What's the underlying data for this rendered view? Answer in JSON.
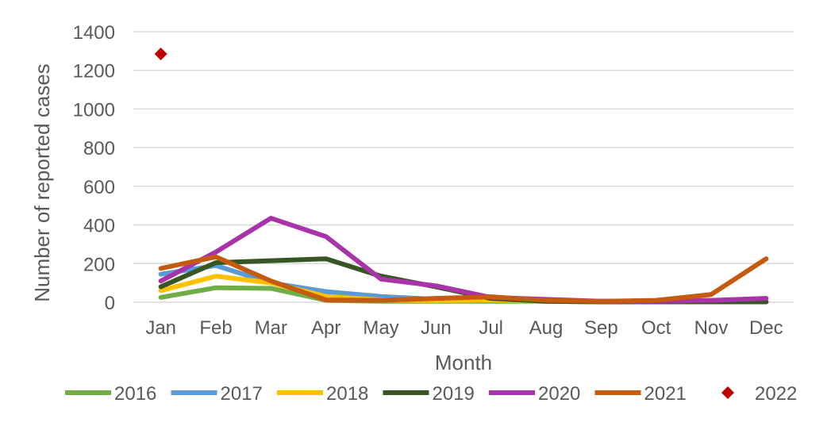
{
  "chart_data": {
    "type": "line",
    "title": "",
    "xlabel": "Month",
    "ylabel": "Number of reported cases",
    "categories": [
      "Jan",
      "Feb",
      "Mar",
      "Apr",
      "May",
      "Jun",
      "Jul",
      "Aug",
      "Sep",
      "Oct",
      "Nov",
      "Dec"
    ],
    "ylim": [
      0,
      1400
    ],
    "yticks": [
      "0",
      "200",
      "400",
      "600",
      "800",
      "1000",
      "1200",
      "1400"
    ],
    "grid": true,
    "legend_position": "bottom",
    "series": [
      {
        "name": "2016",
        "color": "#70ad47",
        "marker": "line",
        "values": [
          25,
          75,
          72,
          10,
          5,
          5,
          5,
          5,
          2,
          2,
          2,
          2
        ]
      },
      {
        "name": "2017",
        "color": "#5b9bd5",
        "marker": "line",
        "values": [
          145,
          190,
          100,
          55,
          30,
          15,
          10,
          5,
          2,
          2,
          2,
          2
        ]
      },
      {
        "name": "2018",
        "color": "#ffc000",
        "marker": "line",
        "values": [
          60,
          135,
          100,
          30,
          12,
          8,
          12,
          5,
          2,
          2,
          2,
          2
        ]
      },
      {
        "name": "2019",
        "color": "#375623",
        "marker": "line",
        "values": [
          80,
          205,
          215,
          225,
          135,
          80,
          20,
          5,
          2,
          2,
          2,
          2
        ]
      },
      {
        "name": "2020",
        "color": "#a933a9",
        "marker": "line",
        "values": [
          110,
          260,
          435,
          340,
          120,
          85,
          25,
          15,
          5,
          5,
          10,
          20
        ]
      },
      {
        "name": "2021",
        "color": "#c55a11",
        "marker": "line",
        "values": [
          175,
          235,
          110,
          12,
          10,
          20,
          28,
          10,
          5,
          10,
          40,
          225
        ]
      },
      {
        "name": "2022",
        "color": "#c00000",
        "marker": "diamond",
        "values": [
          1285,
          null,
          null,
          null,
          null,
          null,
          null,
          null,
          null,
          null,
          null,
          null
        ]
      }
    ]
  }
}
